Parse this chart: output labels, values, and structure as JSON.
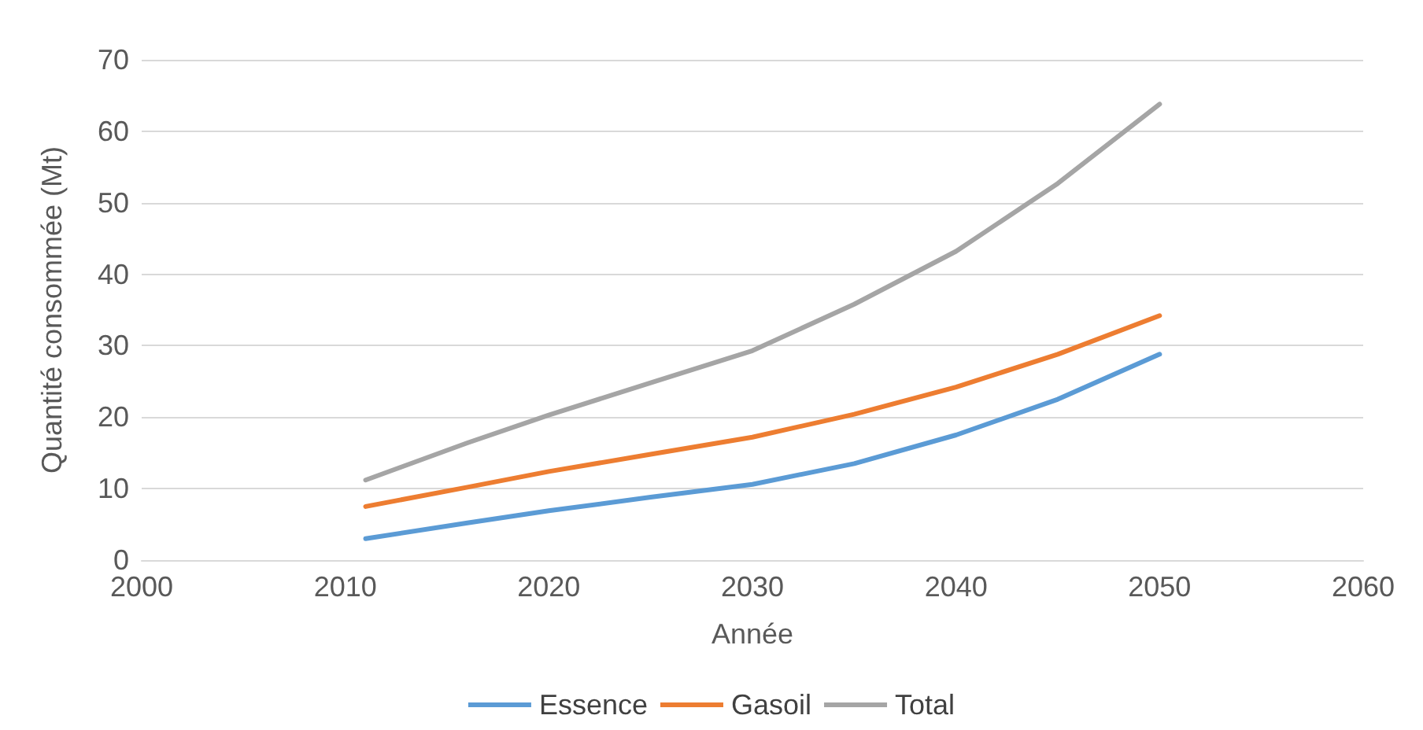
{
  "chart_data": {
    "type": "line",
    "xlabel": "Année",
    "ylabel": "Quantité consommée (Mt)",
    "x": [
      2011,
      2016,
      2020,
      2025,
      2030,
      2035,
      2040,
      2045,
      2050
    ],
    "series": [
      {
        "name": "Essence",
        "color": "#5b9bd5",
        "values": [
          3.0,
          5.2,
          6.9,
          8.8,
          10.6,
          13.5,
          17.5,
          22.5,
          28.8
        ]
      },
      {
        "name": "Gasoil",
        "color": "#ed7d31",
        "values": [
          7.5,
          10.2,
          12.4,
          14.8,
          17.2,
          20.4,
          24.2,
          28.8,
          34.2
        ]
      },
      {
        "name": "Total",
        "color": "#a5a5a5",
        "values": [
          11.2,
          16.4,
          20.3,
          24.8,
          29.3,
          35.8,
          43.2,
          52.7,
          63.8
        ]
      }
    ],
    "xlim": [
      2000,
      2060
    ],
    "xticks": [
      2000,
      2010,
      2020,
      2030,
      2040,
      2050,
      2060
    ],
    "ylim": [
      0,
      70
    ],
    "yticks": [
      0,
      10,
      20,
      30,
      40,
      50,
      60,
      70
    ],
    "grid": "y",
    "legend": "bottom",
    "marker": "none",
    "line_style": "solid"
  }
}
